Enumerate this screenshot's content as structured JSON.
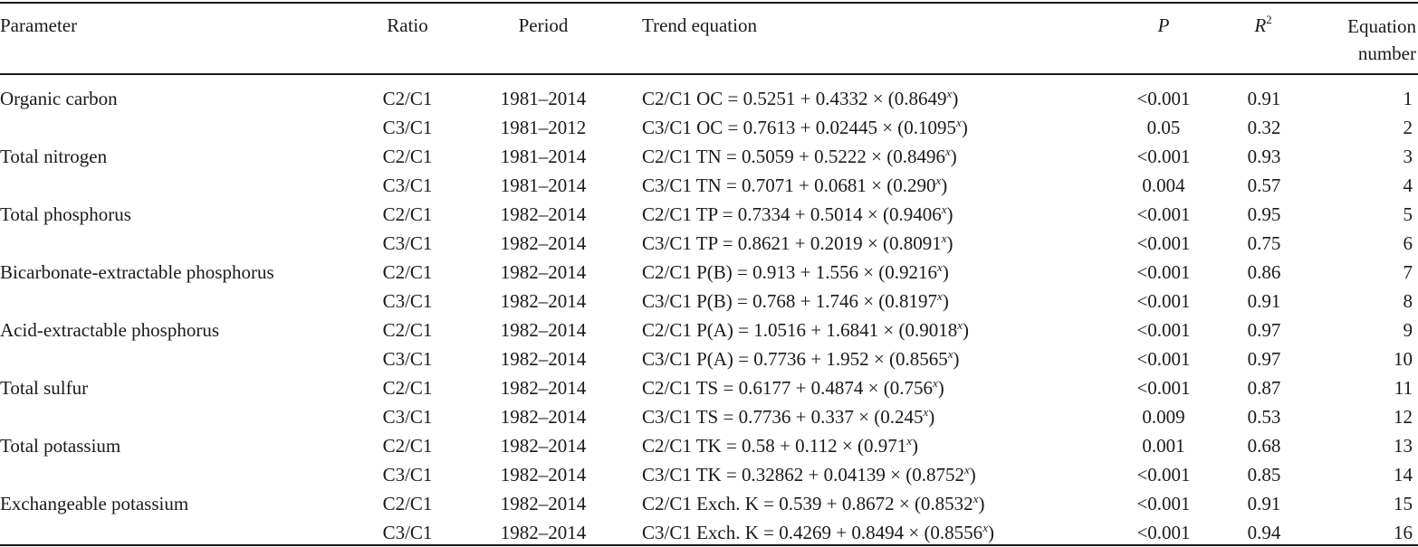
{
  "headers": {
    "parameter": "Parameter",
    "ratio": "Ratio",
    "period": "Period",
    "trend": "Trend equation",
    "p": "P",
    "r2_letter": "R",
    "r2_sup": "2",
    "eq_line1": "Equation",
    "eq_line2": "number"
  },
  "rows": [
    {
      "parameter": "Organic carbon",
      "ratio": "C2/C1",
      "period": "1981–2014",
      "eq_main": "C2/C1 OC = 0.5251 + 0.4332 × (0.8649",
      "eq_sup": "x",
      "eq_end": ")",
      "p": "<0.001",
      "r2": "0.91",
      "num": "1"
    },
    {
      "parameter": "",
      "ratio": "C3/C1",
      "period": "1981–2012",
      "eq_main": "C3/C1 OC = 0.7613 + 0.02445 × (0.1095",
      "eq_sup": "x",
      "eq_end": ")",
      "p": "0.05",
      "r2": "0.32",
      "num": "2"
    },
    {
      "parameter": "Total nitrogen",
      "ratio": "C2/C1",
      "period": "1981–2014",
      "eq_main": "C2/C1 TN = 0.5059 + 0.5222 × (0.8496",
      "eq_sup": "x",
      "eq_end": ")",
      "p": "<0.001",
      "r2": "0.93",
      "num": "3"
    },
    {
      "parameter": "",
      "ratio": "C3/C1",
      "period": "1981–2014",
      "eq_main": "C3/C1 TN = 0.7071 + 0.0681 × (0.290",
      "eq_sup": "x",
      "eq_end": ")",
      "p": "0.004",
      "r2": "0.57",
      "num": "4"
    },
    {
      "parameter": "Total phosphorus",
      "ratio": "C2/C1",
      "period": "1982–2014",
      "eq_main": "C2/C1 TP = 0.7334 + 0.5014 × (0.9406",
      "eq_sup": "x",
      "eq_end": ")",
      "p": "<0.001",
      "r2": "0.95",
      "num": "5"
    },
    {
      "parameter": "",
      "ratio": "C3/C1",
      "period": "1982–2014",
      "eq_main": "C3/C1 TP = 0.8621 + 0.2019 × (0.8091",
      "eq_sup": "x",
      "eq_end": ")",
      "p": "<0.001",
      "r2": "0.75",
      "num": "6"
    },
    {
      "parameter": "Bicarbonate-extractable phosphorus",
      "ratio": "C2/C1",
      "period": "1982–2014",
      "eq_main": "C2/C1 P(B) = 0.913 + 1.556 × (0.9216",
      "eq_sup": "x",
      "eq_end": ")",
      "p": "<0.001",
      "r2": "0.86",
      "num": "7"
    },
    {
      "parameter": "",
      "ratio": "C3/C1",
      "period": "1982–2014",
      "eq_main": "C3/C1 P(B) = 0.768 + 1.746 × (0.8197",
      "eq_sup": "x",
      "eq_end": ")",
      "p": "<0.001",
      "r2": "0.91",
      "num": "8"
    },
    {
      "parameter": "Acid-extractable phosphorus",
      "ratio": "C2/C1",
      "period": "1982–2014",
      "eq_main": "C2/C1 P(A) = 1.0516 + 1.6841 × (0.9018",
      "eq_sup": "x",
      "eq_end": ")",
      "p": "<0.001",
      "r2": "0.97",
      "num": "9"
    },
    {
      "parameter": "",
      "ratio": "C3/C1",
      "period": "1982–2014",
      "eq_main": "C3/C1 P(A) = 0.7736 + 1.952 × (0.8565",
      "eq_sup": "x",
      "eq_end": ")",
      "p": "<0.001",
      "r2": "0.97",
      "num": "10"
    },
    {
      "parameter": "Total sulfur",
      "ratio": "C2/C1",
      "period": "1982–2014",
      "eq_main": "C2/C1 TS = 0.6177 + 0.4874 × (0.756",
      "eq_sup": "x",
      "eq_end": ")",
      "p": "<0.001",
      "r2": "0.87",
      "num": "11"
    },
    {
      "parameter": "",
      "ratio": "C3/C1",
      "period": "1982–2014",
      "eq_main": "C3/C1 TS = 0.7736 + 0.337 × (0.245",
      "eq_sup": "x",
      "eq_end": ")",
      "p": "0.009",
      "r2": "0.53",
      "num": "12"
    },
    {
      "parameter": "Total potassium",
      "ratio": "C2/C1",
      "period": "1982–2014",
      "eq_main": "C2/C1 TK = 0.58 + 0.112 × (0.971",
      "eq_sup": "x",
      "eq_end": ")",
      "p": "0.001",
      "r2": "0.68",
      "num": "13"
    },
    {
      "parameter": "",
      "ratio": "C3/C1",
      "period": "1982–2014",
      "eq_main": "C3/C1 TK = 0.32862 + 0.04139 × (0.8752",
      "eq_sup": "x",
      "eq_end": ")",
      "p": "<0.001",
      "r2": "0.85",
      "num": "14"
    },
    {
      "parameter": "Exchangeable potassium",
      "ratio": "C2/C1",
      "period": "1982–2014",
      "eq_main": "C2/C1 Exch. K = 0.539 + 0.8672 × (0.8532",
      "eq_sup": "x",
      "eq_end": ")",
      "p": "<0.001",
      "r2": "0.91",
      "num": "15"
    },
    {
      "parameter": "",
      "ratio": "C3/C1",
      "period": "1982–2014",
      "eq_main": "C3/C1 Exch. K = 0.4269 + 0.8494 × (0.8556",
      "eq_sup": "x",
      "eq_end": ")",
      "p": "<0.001",
      "r2": "0.94",
      "num": "16"
    }
  ]
}
